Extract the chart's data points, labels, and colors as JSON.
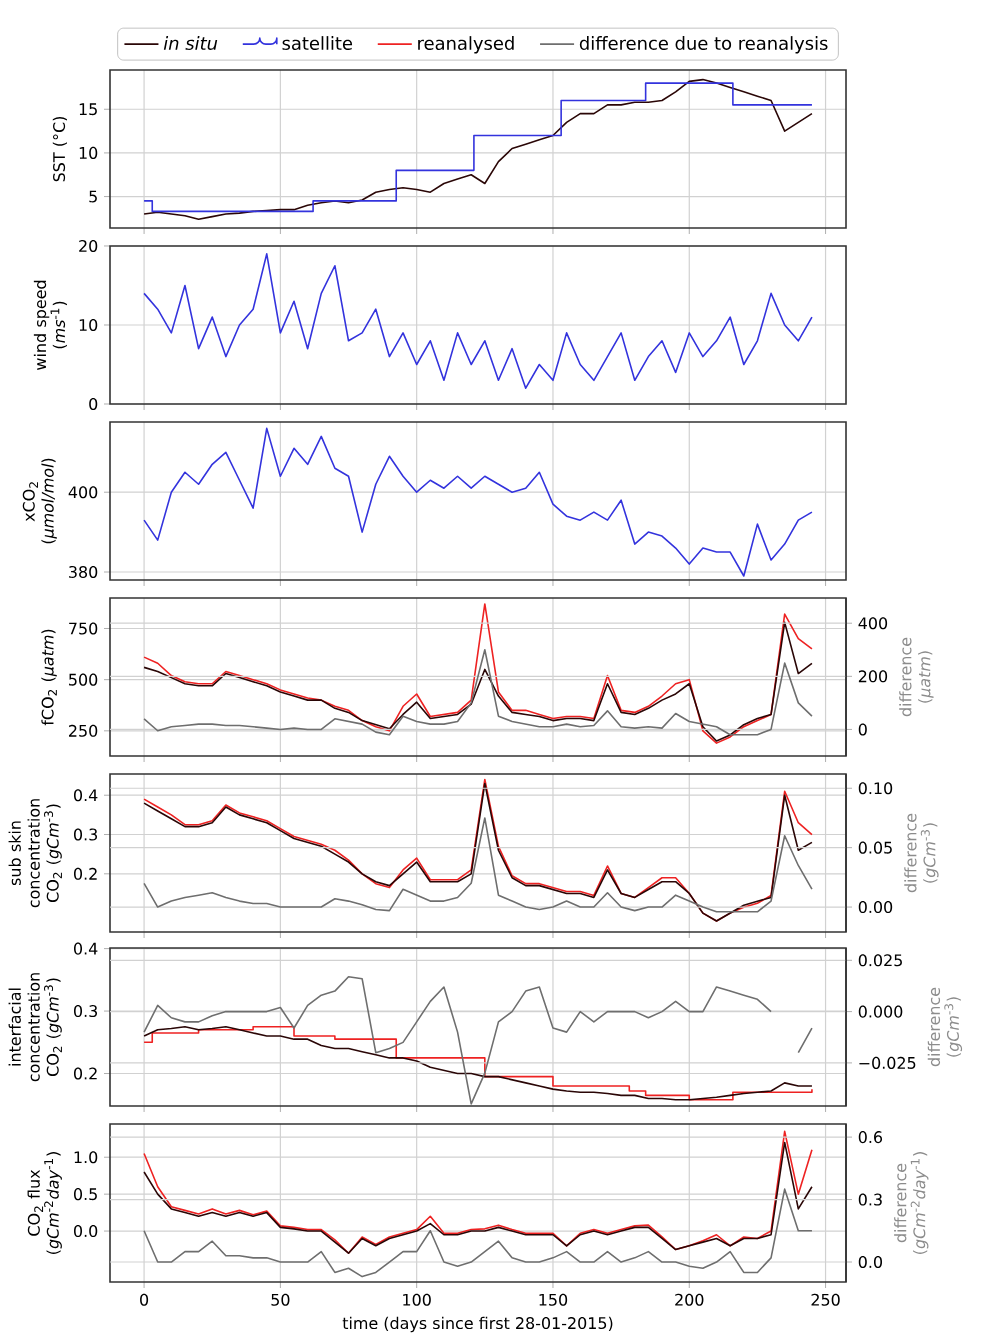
{
  "chart_data": [
    {
      "type": "line",
      "ylabel": "SST (°C)",
      "xlim": [
        -12.5,
        257.5
      ],
      "xticks": [
        0,
        50,
        100,
        150,
        200,
        250
      ],
      "ylim": [
        1.4,
        19.5
      ],
      "yticks": [
        5,
        10,
        15
      ],
      "grid": true,
      "legend": "top",
      "tick_labels": "y",
      "x": [
        0,
        5,
        10,
        15,
        20,
        25,
        30,
        35,
        40,
        45,
        50,
        55,
        60,
        65,
        70,
        75,
        80,
        85,
        90,
        95,
        100,
        105,
        110,
        115,
        120,
        125,
        130,
        135,
        140,
        145,
        150,
        155,
        160,
        165,
        170,
        175,
        180,
        185,
        190,
        195,
        200,
        205,
        210,
        215,
        220,
        225,
        230,
        235,
        240,
        245
      ],
      "series": [
        {
          "name": "*in situ*",
          "color": "#2a0606",
          "values": [
            3,
            3.2,
            3,
            2.8,
            2.4,
            2.7,
            3,
            3.1,
            3.3,
            3.4,
            3.5,
            3.5,
            4,
            4.3,
            4.5,
            4.3,
            4.6,
            5.5,
            5.8,
            6,
            5.8,
            5.5,
            6.5,
            7,
            7.5,
            6.5,
            9,
            10.5,
            11,
            11.5,
            12,
            13.5,
            14.5,
            14.5,
            15.5,
            15.5,
            15.8,
            15.8,
            16,
            17,
            18.2,
            18.4,
            18,
            17.5,
            17,
            16.5,
            16,
            12.5,
            13.5,
            14.5
          ]
        },
        {
          "name": "satellite",
          "color": "#3333dd",
          "type": "step",
          "x": [
            0,
            3,
            62,
            92.5,
            121,
            153,
            184,
            216,
            245
          ],
          "values": [
            4.5,
            3.3,
            4.5,
            8,
            12,
            16,
            18,
            15.5,
            15.5
          ]
        }
      ]
    },
    {
      "type": "line",
      "ylabel": "wind speed (*ms*$^{-1}$)",
      "xlim": [
        -12.5,
        257.5
      ],
      "xticks": [
        0,
        50,
        100,
        150,
        200,
        250
      ],
      "ylim": [
        0,
        20
      ],
      "yticks": [
        0,
        10,
        20
      ],
      "grid": true,
      "tick_labels": "y",
      "x": [
        0,
        5,
        10,
        15,
        20,
        25,
        30,
        35,
        40,
        45,
        50,
        55,
        60,
        65,
        70,
        75,
        80,
        85,
        90,
        95,
        100,
        105,
        110,
        115,
        120,
        125,
        130,
        135,
        140,
        145,
        150,
        155,
        160,
        165,
        170,
        175,
        180,
        185,
        190,
        195,
        200,
        205,
        210,
        215,
        220,
        225,
        230,
        235,
        240,
        245
      ],
      "series": [
        {
          "color": "#3333dd",
          "values": [
            14,
            12,
            9,
            15,
            7,
            11,
            6,
            10,
            12,
            19,
            9,
            13,
            7,
            14,
            17.5,
            8,
            9,
            12,
            6,
            9,
            5,
            8,
            3,
            9,
            5,
            8,
            3,
            7,
            2,
            5,
            3,
            9,
            5,
            3,
            6,
            9,
            3,
            6,
            8,
            4,
            9,
            6,
            8,
            11,
            5,
            8,
            14,
            10,
            8,
            11
          ]
        }
      ]
    },
    {
      "type": "line",
      "ylabel": "xCO$_{2}$ (*µmol/mol*)",
      "xlim": [
        -12.5,
        257.5
      ],
      "xticks": [
        0,
        50,
        100,
        150,
        200,
        250
      ],
      "ylim": [
        378,
        417.6
      ],
      "yticks": [
        380,
        400
      ],
      "grid": true,
      "tick_labels": "y",
      "x": [
        0,
        5,
        10,
        15,
        20,
        25,
        30,
        35,
        40,
        45,
        50,
        55,
        60,
        65,
        70,
        75,
        80,
        85,
        90,
        95,
        100,
        105,
        110,
        115,
        120,
        125,
        130,
        135,
        140,
        145,
        150,
        155,
        160,
        165,
        170,
        175,
        180,
        185,
        190,
        195,
        200,
        205,
        210,
        215,
        220,
        225,
        230,
        235,
        240,
        245
      ],
      "series": [
        {
          "color": "#3333dd",
          "values": [
            393,
            388,
            400,
            405,
            402,
            407,
            410,
            403,
            396,
            416,
            404,
            411,
            407,
            414,
            406,
            404,
            390,
            402,
            409,
            404,
            400,
            403,
            401,
            404,
            401,
            404,
            402,
            400,
            401,
            405,
            397,
            394,
            393,
            395,
            393,
            398,
            387,
            390,
            389,
            386,
            382,
            386,
            385,
            385,
            379,
            392,
            383,
            387,
            393,
            395
          ]
        }
      ]
    },
    {
      "type": "line",
      "ylabel": "fCO$_{2}$ (*µatm*)",
      "y2label": "difference (*µatm*)",
      "xlim": [
        -12.5,
        257.5
      ],
      "xticks": [
        0,
        50,
        100,
        150,
        200,
        250
      ],
      "ylim": [
        127,
        899
      ],
      "yticks": [
        250,
        500,
        750
      ],
      "y2lim": [
        -100,
        495
      ],
      "y2ticks": [
        0,
        200,
        400
      ],
      "grid": true,
      "tick_labels": "y",
      "x": [
        0,
        5,
        10,
        15,
        20,
        25,
        30,
        35,
        40,
        45,
        50,
        55,
        60,
        65,
        70,
        75,
        80,
        85,
        90,
        95,
        100,
        105,
        110,
        115,
        120,
        125,
        130,
        135,
        140,
        145,
        150,
        155,
        160,
        165,
        170,
        175,
        180,
        185,
        190,
        195,
        200,
        205,
        210,
        215,
        220,
        225,
        230,
        235,
        240,
        245
      ],
      "series": [
        {
          "color": "#ee2222",
          "name": "reanalysed",
          "values": [
            610,
            580,
            520,
            490,
            480,
            480,
            540,
            520,
            500,
            480,
            450,
            430,
            410,
            400,
            370,
            350,
            300,
            270,
            250,
            370,
            430,
            320,
            330,
            340,
            400,
            870,
            440,
            350,
            350,
            330,
            310,
            320,
            320,
            310,
            520,
            350,
            340,
            370,
            420,
            480,
            500,
            250,
            190,
            220,
            270,
            300,
            330,
            820,
            700,
            650
          ]
        },
        {
          "color": "#2a0606",
          "values": [
            560,
            540,
            510,
            480,
            470,
            470,
            530,
            510,
            490,
            470,
            440,
            420,
            400,
            400,
            360,
            340,
            300,
            280,
            260,
            330,
            390,
            310,
            320,
            330,
            380,
            550,
            420,
            340,
            330,
            320,
            300,
            310,
            310,
            300,
            480,
            340,
            330,
            360,
            400,
            430,
            480,
            270,
            200,
            230,
            280,
            310,
            330,
            780,
            530,
            580
          ]
        },
        {
          "color": "#6e6e6e",
          "name": "difference due to reanalysis",
          "axis": "y2",
          "values": [
            40,
            -5,
            10,
            15,
            20,
            20,
            15,
            15,
            10,
            5,
            0,
            5,
            0,
            0,
            40,
            30,
            20,
            -10,
            -20,
            50,
            30,
            20,
            20,
            30,
            100,
            300,
            50,
            30,
            20,
            10,
            10,
            20,
            10,
            15,
            70,
            10,
            5,
            10,
            5,
            60,
            30,
            20,
            10,
            -20,
            -20,
            -20,
            0,
            250,
            100,
            50
          ]
        }
      ]
    },
    {
      "type": "line",
      "ylabel": "sub skin concentration CO$_{2}$ (*gCm*$^{-3}$)",
      "y2label": "difference (*gCm*$^{-3}$)",
      "xlim": [
        -12.5,
        257.5
      ],
      "xticks": [
        0,
        50,
        100,
        150,
        200,
        250
      ],
      "ylim": [
        0.052,
        0.454
      ],
      "yticks": [
        0.2,
        0.3,
        0.4
      ],
      "y2lim": [
        -0.021,
        0.112
      ],
      "y2ticks": [
        {
          "value": 0,
          "label": "0.00"
        },
        {
          "value": 0.05,
          "label": "0.05"
        },
        {
          "value": 0.1,
          "label": "0.10"
        }
      ],
      "grid": true,
      "tick_labels": "y",
      "x": [
        0,
        5,
        10,
        15,
        20,
        25,
        30,
        35,
        40,
        45,
        50,
        55,
        60,
        65,
        70,
        75,
        80,
        85,
        90,
        95,
        100,
        105,
        110,
        115,
        120,
        125,
        130,
        135,
        140,
        145,
        150,
        155,
        160,
        165,
        170,
        175,
        180,
        185,
        190,
        195,
        200,
        205,
        210,
        215,
        220,
        225,
        230,
        235,
        240,
        245
      ],
      "series": [
        {
          "color": "#ee2222",
          "values": [
            0.39,
            0.37,
            0.35,
            0.325,
            0.325,
            0.335,
            0.375,
            0.355,
            0.345,
            0.335,
            0.315,
            0.295,
            0.285,
            0.275,
            0.26,
            0.235,
            0.2,
            0.175,
            0.165,
            0.21,
            0.24,
            0.185,
            0.185,
            0.185,
            0.21,
            0.44,
            0.27,
            0.195,
            0.175,
            0.175,
            0.165,
            0.155,
            0.155,
            0.145,
            0.22,
            0.15,
            0.14,
            0.165,
            0.19,
            0.19,
            0.15,
            0.1,
            0.08,
            0.1,
            0.115,
            0.125,
            0.145,
            0.41,
            0.33,
            0.3
          ]
        },
        {
          "color": "#2a0606",
          "values": [
            0.38,
            0.36,
            0.34,
            0.32,
            0.32,
            0.33,
            0.37,
            0.35,
            0.34,
            0.33,
            0.31,
            0.29,
            0.28,
            0.27,
            0.25,
            0.23,
            0.2,
            0.18,
            0.17,
            0.2,
            0.23,
            0.18,
            0.18,
            0.18,
            0.2,
            0.43,
            0.26,
            0.19,
            0.17,
            0.17,
            0.16,
            0.15,
            0.15,
            0.14,
            0.21,
            0.15,
            0.14,
            0.16,
            0.18,
            0.18,
            0.15,
            0.1,
            0.08,
            0.1,
            0.12,
            0.13,
            0.14,
            0.4,
            0.26,
            0.28
          ]
        },
        {
          "color": "#6e6e6e",
          "axis": "y2",
          "values": [
            0.02,
            0,
            0.005,
            0.008,
            0.01,
            0.012,
            0.008,
            0.005,
            0.003,
            0.003,
            0,
            0,
            0,
            0,
            0.007,
            0.005,
            0.002,
            -0.002,
            -0.003,
            0.015,
            0.01,
            0.005,
            0.005,
            0.008,
            0.02,
            0.075,
            0.01,
            0.005,
            0,
            -0.002,
            0,
            0.005,
            0,
            0,
            0.012,
            0,
            -0.003,
            0,
            0,
            0.01,
            0.005,
            0,
            -0.004,
            -0.004,
            -0.004,
            -0.004,
            0.005,
            0.06,
            0.035,
            0.015
          ]
        }
      ]
    },
    {
      "type": "line",
      "ylabel": "interfacial concentration CO$_{2}$ (*gCm*$^{-3}$)",
      "y2label": "difference (*gCm*$^{-3}$)",
      "xlim": [
        -12.5,
        257.5
      ],
      "xticks": [
        0,
        50,
        100,
        150,
        200,
        250
      ],
      "ylim": [
        0.148,
        0.401
      ],
      "yticks": [
        0.2,
        0.3,
        0.4
      ],
      "y2lim": [
        -0.046,
        0.031
      ],
      "y2ticks": [
        {
          "value": -0.025,
          "label": "−0.025"
        },
        {
          "value": 0,
          "label": "0.000"
        },
        {
          "value": 0.025,
          "label": "0.025"
        }
      ],
      "grid": true,
      "tick_labels": "y",
      "x": [
        0,
        5,
        10,
        15,
        20,
        25,
        30,
        35,
        40,
        45,
        50,
        55,
        60,
        65,
        70,
        75,
        80,
        85,
        90,
        95,
        100,
        105,
        110,
        115,
        120,
        125,
        130,
        135,
        140,
        145,
        150,
        155,
        160,
        165,
        170,
        175,
        180,
        185,
        190,
        195,
        200,
        205,
        210,
        215,
        220,
        225,
        230,
        235,
        240,
        245
      ],
      "series": [
        {
          "color": "#ee2222",
          "type": "step",
          "x": [
            0,
            3,
            20,
            40,
            55,
            70,
            92.5,
            125,
            150,
            178,
            184,
            200,
            216,
            245
          ],
          "values": [
            0.25,
            0.265,
            0.27,
            0.275,
            0.26,
            0.255,
            0.225,
            0.195,
            0.18,
            0.172,
            0.165,
            0.158,
            0.17,
            0.175
          ]
        },
        {
          "color": "#2a0606",
          "values": [
            0.26,
            0.27,
            0.272,
            0.275,
            0.27,
            0.272,
            0.275,
            0.27,
            0.265,
            0.26,
            0.26,
            0.255,
            0.255,
            0.245,
            0.24,
            0.24,
            0.235,
            0.23,
            0.225,
            0.225,
            0.22,
            0.21,
            0.205,
            0.2,
            0.2,
            0.195,
            0.195,
            0.19,
            0.185,
            0.18,
            0.175,
            0.172,
            0.17,
            0.17,
            0.168,
            0.165,
            0.165,
            0.16,
            0.16,
            0.158,
            0.158,
            0.16,
            0.162,
            0.165,
            0.168,
            0.17,
            0.172,
            0.185,
            0.18,
            0.18
          ]
        },
        {
          "color": "#6e6e6e",
          "axis": "y2",
          "values": [
            -0.01,
            0.003,
            -0.003,
            -0.005,
            -0.005,
            -0.002,
            0,
            0,
            0,
            0,
            0.002,
            -0.008,
            0.003,
            0.008,
            0.01,
            0.017,
            0.016,
            -0.02,
            -0.018,
            -0.015,
            -0.005,
            0.005,
            0.012,
            -0.01,
            -0.045,
            -0.03,
            -0.005,
            0,
            0.01,
            0.012,
            -0.008,
            -0.01,
            0,
            -0.005,
            0,
            0,
            0,
            -0.003,
            0,
            0.005,
            0,
            0,
            0.012,
            0.01,
            0.008,
            0.006,
            0,
            null,
            -0.02,
            -0.008
          ]
        }
      ]
    },
    {
      "type": "line",
      "xlabel": "time (days since first 28-01-2015)",
      "ylabel": "CO$_{2}$ flux (*gCm*$^{-2}$*day*$^{-1}$)",
      "y2label": "difference (*gCm*$^{-2}$*day*$^{-1}$)",
      "xlim": [
        -12.5,
        257.5
      ],
      "xticks": [
        0,
        50,
        100,
        150,
        200,
        250
      ],
      "ylim": [
        -0.69,
        1.45
      ],
      "yticks": [
        {
          "value": 0,
          "label": "0.0"
        },
        {
          "value": 0.5,
          "label": "0.5"
        },
        {
          "value": 1,
          "label": "1.0"
        }
      ],
      "y2lim": [
        -0.096,
        0.663
      ],
      "y2ticks": [
        {
          "value": 0,
          "label": "0.0"
        },
        {
          "value": 0.3,
          "label": "0.3"
        },
        {
          "value": 0.6,
          "label": "0.6"
        }
      ],
      "grid": true,
      "x": [
        0,
        5,
        10,
        15,
        20,
        25,
        30,
        35,
        40,
        45,
        50,
        55,
        60,
        65,
        70,
        75,
        80,
        85,
        90,
        95,
        100,
        105,
        110,
        115,
        120,
        125,
        130,
        135,
        140,
        145,
        150,
        155,
        160,
        165,
        170,
        175,
        180,
        185,
        190,
        195,
        200,
        205,
        210,
        215,
        220,
        225,
        230,
        235,
        240,
        245
      ],
      "series": [
        {
          "color": "#ee2222",
          "values": [
            1.05,
            0.6,
            0.33,
            0.28,
            0.23,
            0.3,
            0.23,
            0.28,
            0.22,
            0.27,
            0.07,
            0.05,
            0.02,
            0.02,
            -0.12,
            -0.3,
            -0.08,
            -0.18,
            -0.08,
            -0.03,
            0.02,
            0.2,
            -0.03,
            -0.03,
            0.02,
            0.03,
            0.08,
            0.02,
            -0.03,
            -0.03,
            -0.03,
            -0.2,
            -0.03,
            0.02,
            -0.03,
            0.02,
            0.07,
            0.08,
            -0.08,
            -0.25,
            -0.2,
            -0.13,
            -0.05,
            -0.2,
            -0.08,
            -0.1,
            0,
            1.35,
            0.5,
            1.1
          ]
        },
        {
          "color": "#2a0606",
          "values": [
            0.8,
            0.5,
            0.3,
            0.25,
            0.2,
            0.25,
            0.2,
            0.25,
            0.2,
            0.25,
            0.05,
            0.03,
            0,
            0,
            -0.15,
            -0.3,
            -0.1,
            -0.2,
            -0.1,
            -0.05,
            0,
            0.1,
            -0.05,
            -0.05,
            0,
            0,
            0.05,
            0,
            -0.05,
            -0.05,
            -0.05,
            -0.2,
            -0.05,
            0,
            -0.05,
            0,
            0.05,
            0.05,
            -0.1,
            -0.25,
            -0.2,
            -0.15,
            -0.1,
            -0.2,
            -0.1,
            -0.1,
            -0.05,
            1.2,
            0.3,
            0.6
          ]
        },
        {
          "color": "#6e6e6e",
          "axis": "y2",
          "values": [
            0.15,
            0,
            0,
            0.05,
            0.05,
            0.1,
            0.03,
            0.03,
            0.02,
            0.02,
            0,
            0,
            0,
            0.05,
            -0.05,
            -0.03,
            -0.07,
            -0.05,
            0,
            0.05,
            0.05,
            0.15,
            0,
            -0.02,
            0,
            0.05,
            0.1,
            0.02,
            0,
            0,
            0.02,
            0.05,
            0,
            0,
            0.05,
            0,
            0.02,
            0.05,
            0,
            0,
            -0.02,
            -0.03,
            0,
            0.05,
            -0.05,
            -0.05,
            0.02,
            0.35,
            0.15,
            0.15
          ]
        }
      ]
    }
  ]
}
